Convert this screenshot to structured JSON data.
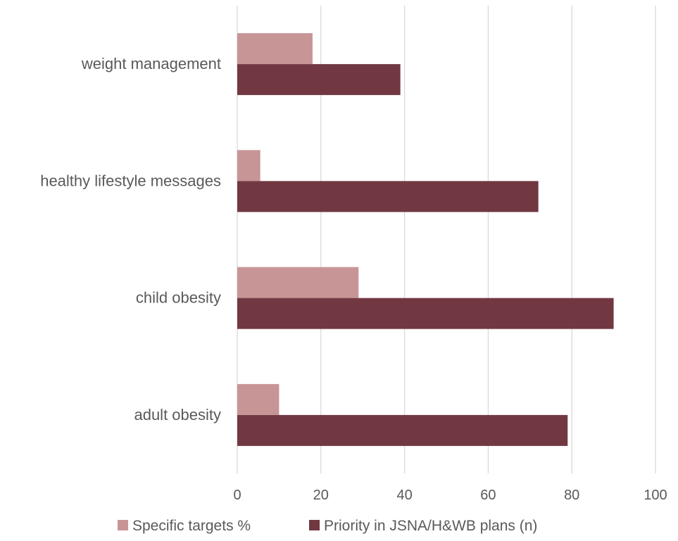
{
  "chart_data": {
    "type": "bar",
    "orientation": "horizontal",
    "categories": [
      "weight management",
      "healthy lifestyle messages",
      "child obesity",
      "adult obesity"
    ],
    "series": [
      {
        "name": "Specific targets %",
        "values": [
          18,
          5.5,
          29,
          10
        ],
        "color": "#c89597"
      },
      {
        "name": "Priority in JSNA/H&WB plans (n)",
        "values": [
          39,
          72,
          90,
          79
        ],
        "color": "#713842"
      }
    ],
    "xlim": [
      0,
      100
    ],
    "xticks": [
      0,
      20,
      40,
      60,
      80,
      100
    ],
    "grid": true,
    "legend": "bottom"
  }
}
